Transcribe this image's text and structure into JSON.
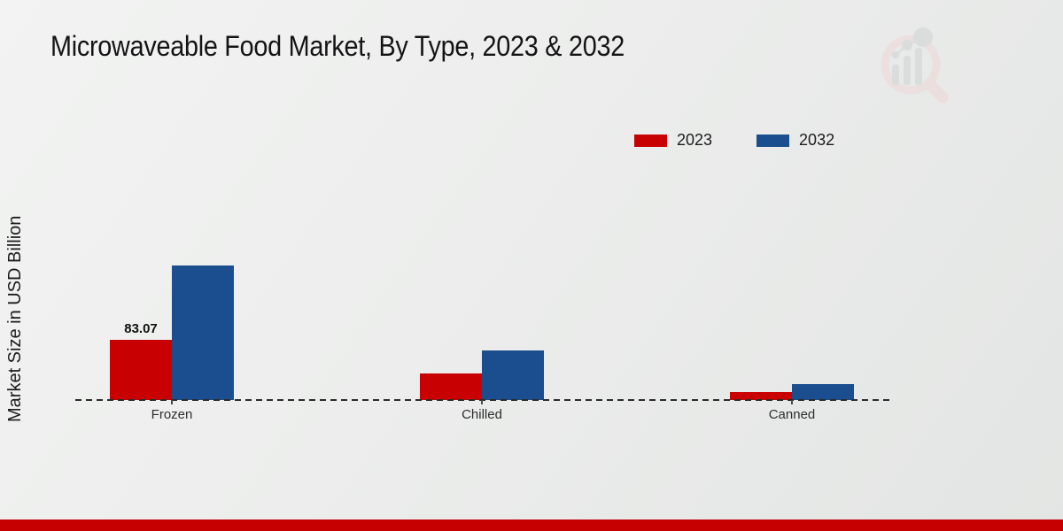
{
  "title": "Microwaveable Food Market, By Type, 2023 & 2032",
  "watermark": {
    "icon": "magnifier-bar-chart-logo"
  },
  "footer": {
    "stripe_color": "#c60001"
  },
  "chart_data": {
    "type": "bar",
    "title": "Microwaveable Food Market, By Type, 2023 & 2032",
    "xlabel": "",
    "ylabel": "Market Size in USD Billion",
    "categories": [
      "Frozen",
      "Chilled",
      "Canned"
    ],
    "series": [
      {
        "name": "2023",
        "color": "#c90001",
        "values": [
          83.07,
          36.2,
          11.0
        ]
      },
      {
        "name": "2032",
        "color": "#1a4e8e",
        "values": [
          185.4,
          67.9,
          22.4
        ]
      }
    ],
    "annotations": [
      {
        "series_index": 0,
        "category_index": 0,
        "text": "83.07"
      }
    ],
    "ylim": [
      0,
      210
    ],
    "grid": false,
    "baseline_style": "dashed",
    "legend_position": "top-right",
    "y_axis_ticks_shown": false
  }
}
